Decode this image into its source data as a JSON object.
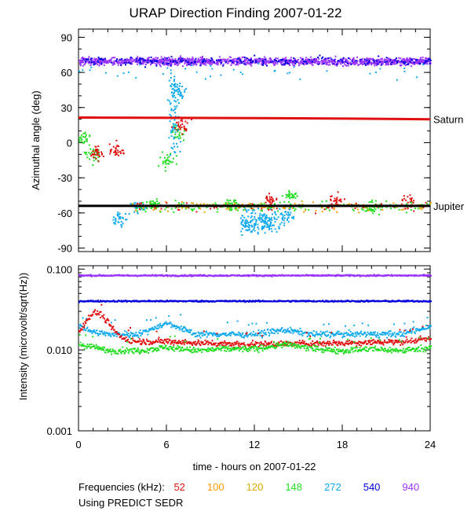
{
  "title": "URAP Direction Finding  2007-01-22",
  "xlabel": "time - hours on 2007-01-22",
  "legend_label": "Frequencies (kHz):",
  "frequencies": [
    {
      "label": "52",
      "color": "#e01010"
    },
    {
      "label": "100",
      "color": "#ff9900"
    },
    {
      "label": "120",
      "color": "#ddaa00"
    },
    {
      "label": "148",
      "color": "#22dd22"
    },
    {
      "label": "272",
      "color": "#11aaee"
    },
    {
      "label": "540",
      "color": "#0000dd"
    },
    {
      "label": "940",
      "color": "#9933ff"
    }
  ],
  "footnote": "Using PREDICT SEDR",
  "chart_data": [
    {
      "type": "scatter",
      "ylabel": "Azimuthal angle (deg)",
      "xlim": [
        0,
        24
      ],
      "ylim": [
        -93,
        97
      ],
      "xticks": [
        "0",
        "6",
        "12",
        "18",
        "24"
      ],
      "yticks": [
        "90",
        "60",
        "30",
        "0",
        "-30",
        "-60",
        "-90"
      ],
      "reference_lines": [
        {
          "label": "Saturn",
          "color": "#e01010",
          "points": [
            [
              0,
              21.5
            ],
            [
              12,
              21
            ],
            [
              18.5,
              20.5
            ],
            [
              24,
              20
            ]
          ]
        },
        {
          "label": "Jupiter",
          "color": "#000000",
          "points": [
            [
              0,
              -54
            ],
            [
              24,
              -54
            ]
          ]
        }
      ],
      "series": [
        {
          "freq": "940",
          "description_level_deg": 70,
          "x_range": [
            0,
            24
          ]
        },
        {
          "freq": "540",
          "description_level_deg": 70,
          "x_range": [
            0,
            24
          ]
        },
        {
          "freq": "272",
          "clusters": [
            [
              2.8,
              -65
            ],
            [
              6.8,
              45
            ],
            [
              11.5,
              -70
            ],
            [
              12.8,
              -68
            ],
            [
              14.2,
              -60
            ],
            [
              4.0,
              -55
            ]
          ]
        },
        {
          "freq": "148",
          "clusters": [
            [
              0.3,
              5
            ],
            [
              1.0,
              -10
            ],
            [
              6.0,
              -15
            ],
            [
              6.8,
              10
            ],
            [
              5.0,
              -52
            ],
            [
              10.5,
              -52
            ],
            [
              14.5,
              -45
            ],
            [
              20,
              -55
            ]
          ]
        },
        {
          "freq": "52",
          "clusters": [
            [
              1.2,
              -8
            ],
            [
              2.5,
              -5
            ],
            [
              7.0,
              15
            ],
            [
              13.0,
              -50
            ],
            [
              17.5,
              -50
            ],
            [
              22.5,
              -50
            ]
          ]
        }
      ]
    },
    {
      "type": "line",
      "ylabel": "Intensity (microvolt/sqrt(Hz))",
      "xlim": [
        0,
        24
      ],
      "yscale": "log",
      "ylim": [
        0.001,
        0.11
      ],
      "xticks": [
        "0",
        "6",
        "12",
        "18",
        "24"
      ],
      "yticks": [
        "0.100",
        "0.010",
        "0.001"
      ],
      "series": [
        {
          "freq": "940",
          "x": [
            0,
            6,
            12,
            18,
            24
          ],
          "y": [
            0.085,
            0.085,
            0.085,
            0.085,
            0.085
          ]
        },
        {
          "freq": "540",
          "x": [
            0,
            6,
            12,
            18,
            24
          ],
          "y": [
            0.041,
            0.041,
            0.041,
            0.041,
            0.041
          ]
        },
        {
          "freq": "272",
          "x": [
            0,
            1,
            2,
            4,
            6,
            8,
            10,
            12,
            14,
            16,
            18,
            20,
            22,
            24
          ],
          "y": [
            0.02,
            0.017,
            0.016,
            0.016,
            0.022,
            0.016,
            0.016,
            0.016,
            0.018,
            0.016,
            0.016,
            0.016,
            0.016,
            0.02
          ]
        },
        {
          "freq": "52",
          "x": [
            0,
            0.5,
            1,
            1.5,
            2,
            2.5,
            3,
            4,
            6,
            8,
            12,
            18,
            22,
            24
          ],
          "y": [
            0.017,
            0.024,
            0.03,
            0.028,
            0.022,
            0.017,
            0.014,
            0.013,
            0.013,
            0.0125,
            0.012,
            0.0125,
            0.013,
            0.014
          ]
        },
        {
          "freq": "148",
          "x": [
            0,
            1,
            2,
            4,
            6,
            8,
            10,
            12,
            14,
            16,
            18,
            20,
            22,
            24
          ],
          "y": [
            0.012,
            0.011,
            0.01,
            0.01,
            0.011,
            0.01,
            0.0105,
            0.0105,
            0.012,
            0.0105,
            0.01,
            0.0105,
            0.01,
            0.011
          ]
        }
      ]
    }
  ]
}
